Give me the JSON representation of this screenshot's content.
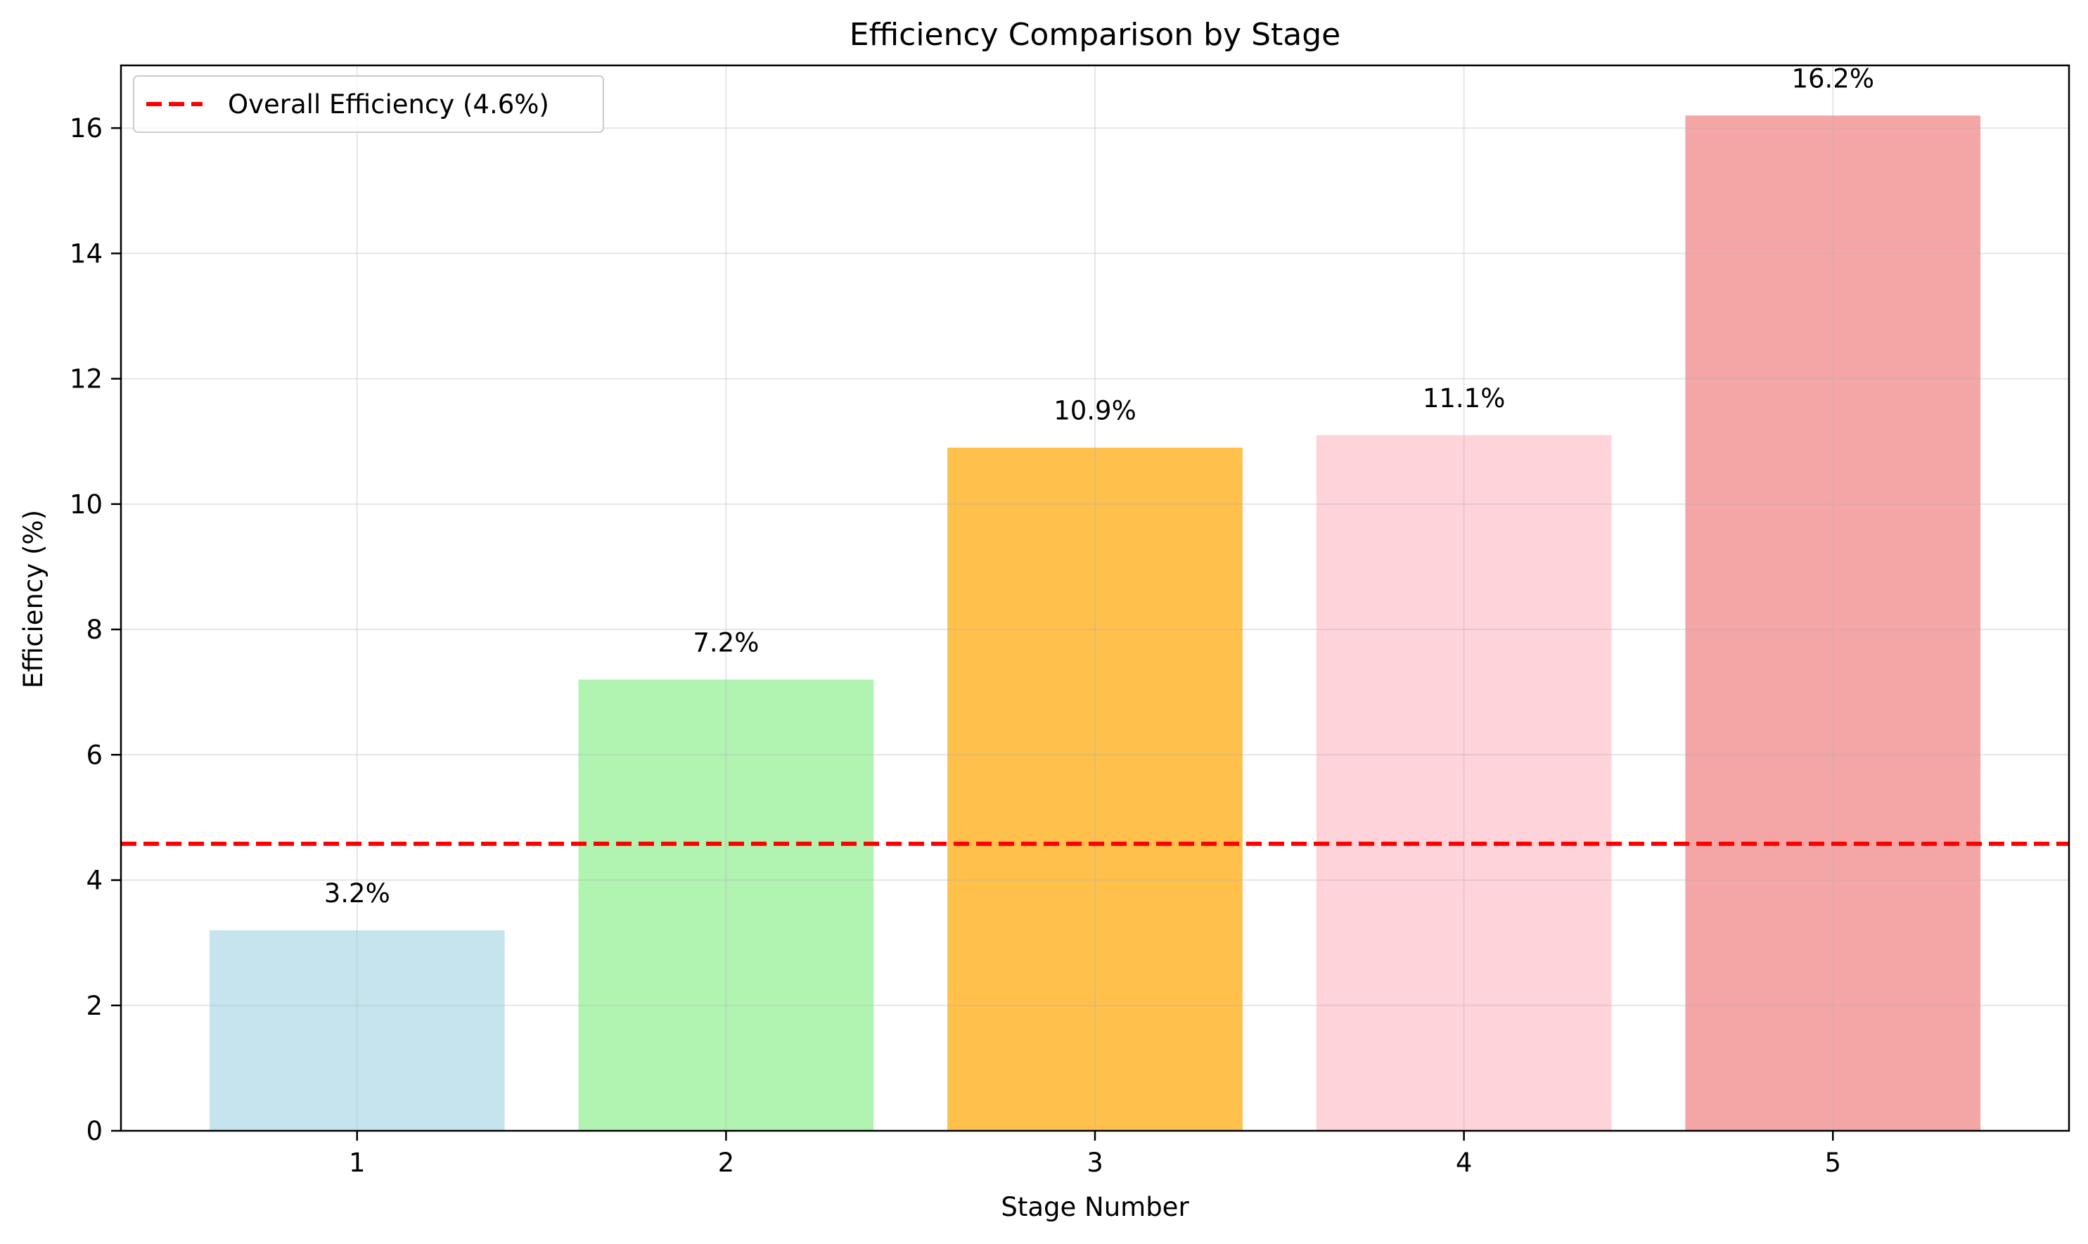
{
  "chart_data": {
    "type": "bar",
    "title": "Efficiency Comparison by Stage",
    "xlabel": "Stage Number",
    "ylabel": "Efficiency (%)",
    "categories": [
      "1",
      "2",
      "3",
      "4",
      "5"
    ],
    "values": [
      3.2,
      7.2,
      10.9,
      11.1,
      16.2
    ],
    "value_labels": [
      "3.2%",
      "7.2%",
      "10.9%",
      "11.1%",
      "16.2%"
    ],
    "bar_colors": [
      "#add8e6",
      "#90ee90",
      "#ffa500",
      "#ffc0cb",
      "#f08080"
    ],
    "bar_opacity": 0.7,
    "ylim": [
      0,
      17
    ],
    "yticks": [
      0,
      2,
      4,
      6,
      8,
      10,
      12,
      14,
      16
    ],
    "grid": true,
    "reference_line": {
      "label": "Overall Efficiency (4.6%)",
      "value": 4.58,
      "color": "#ff0000",
      "style": "dashed"
    },
    "legend_position": "top-left"
  }
}
